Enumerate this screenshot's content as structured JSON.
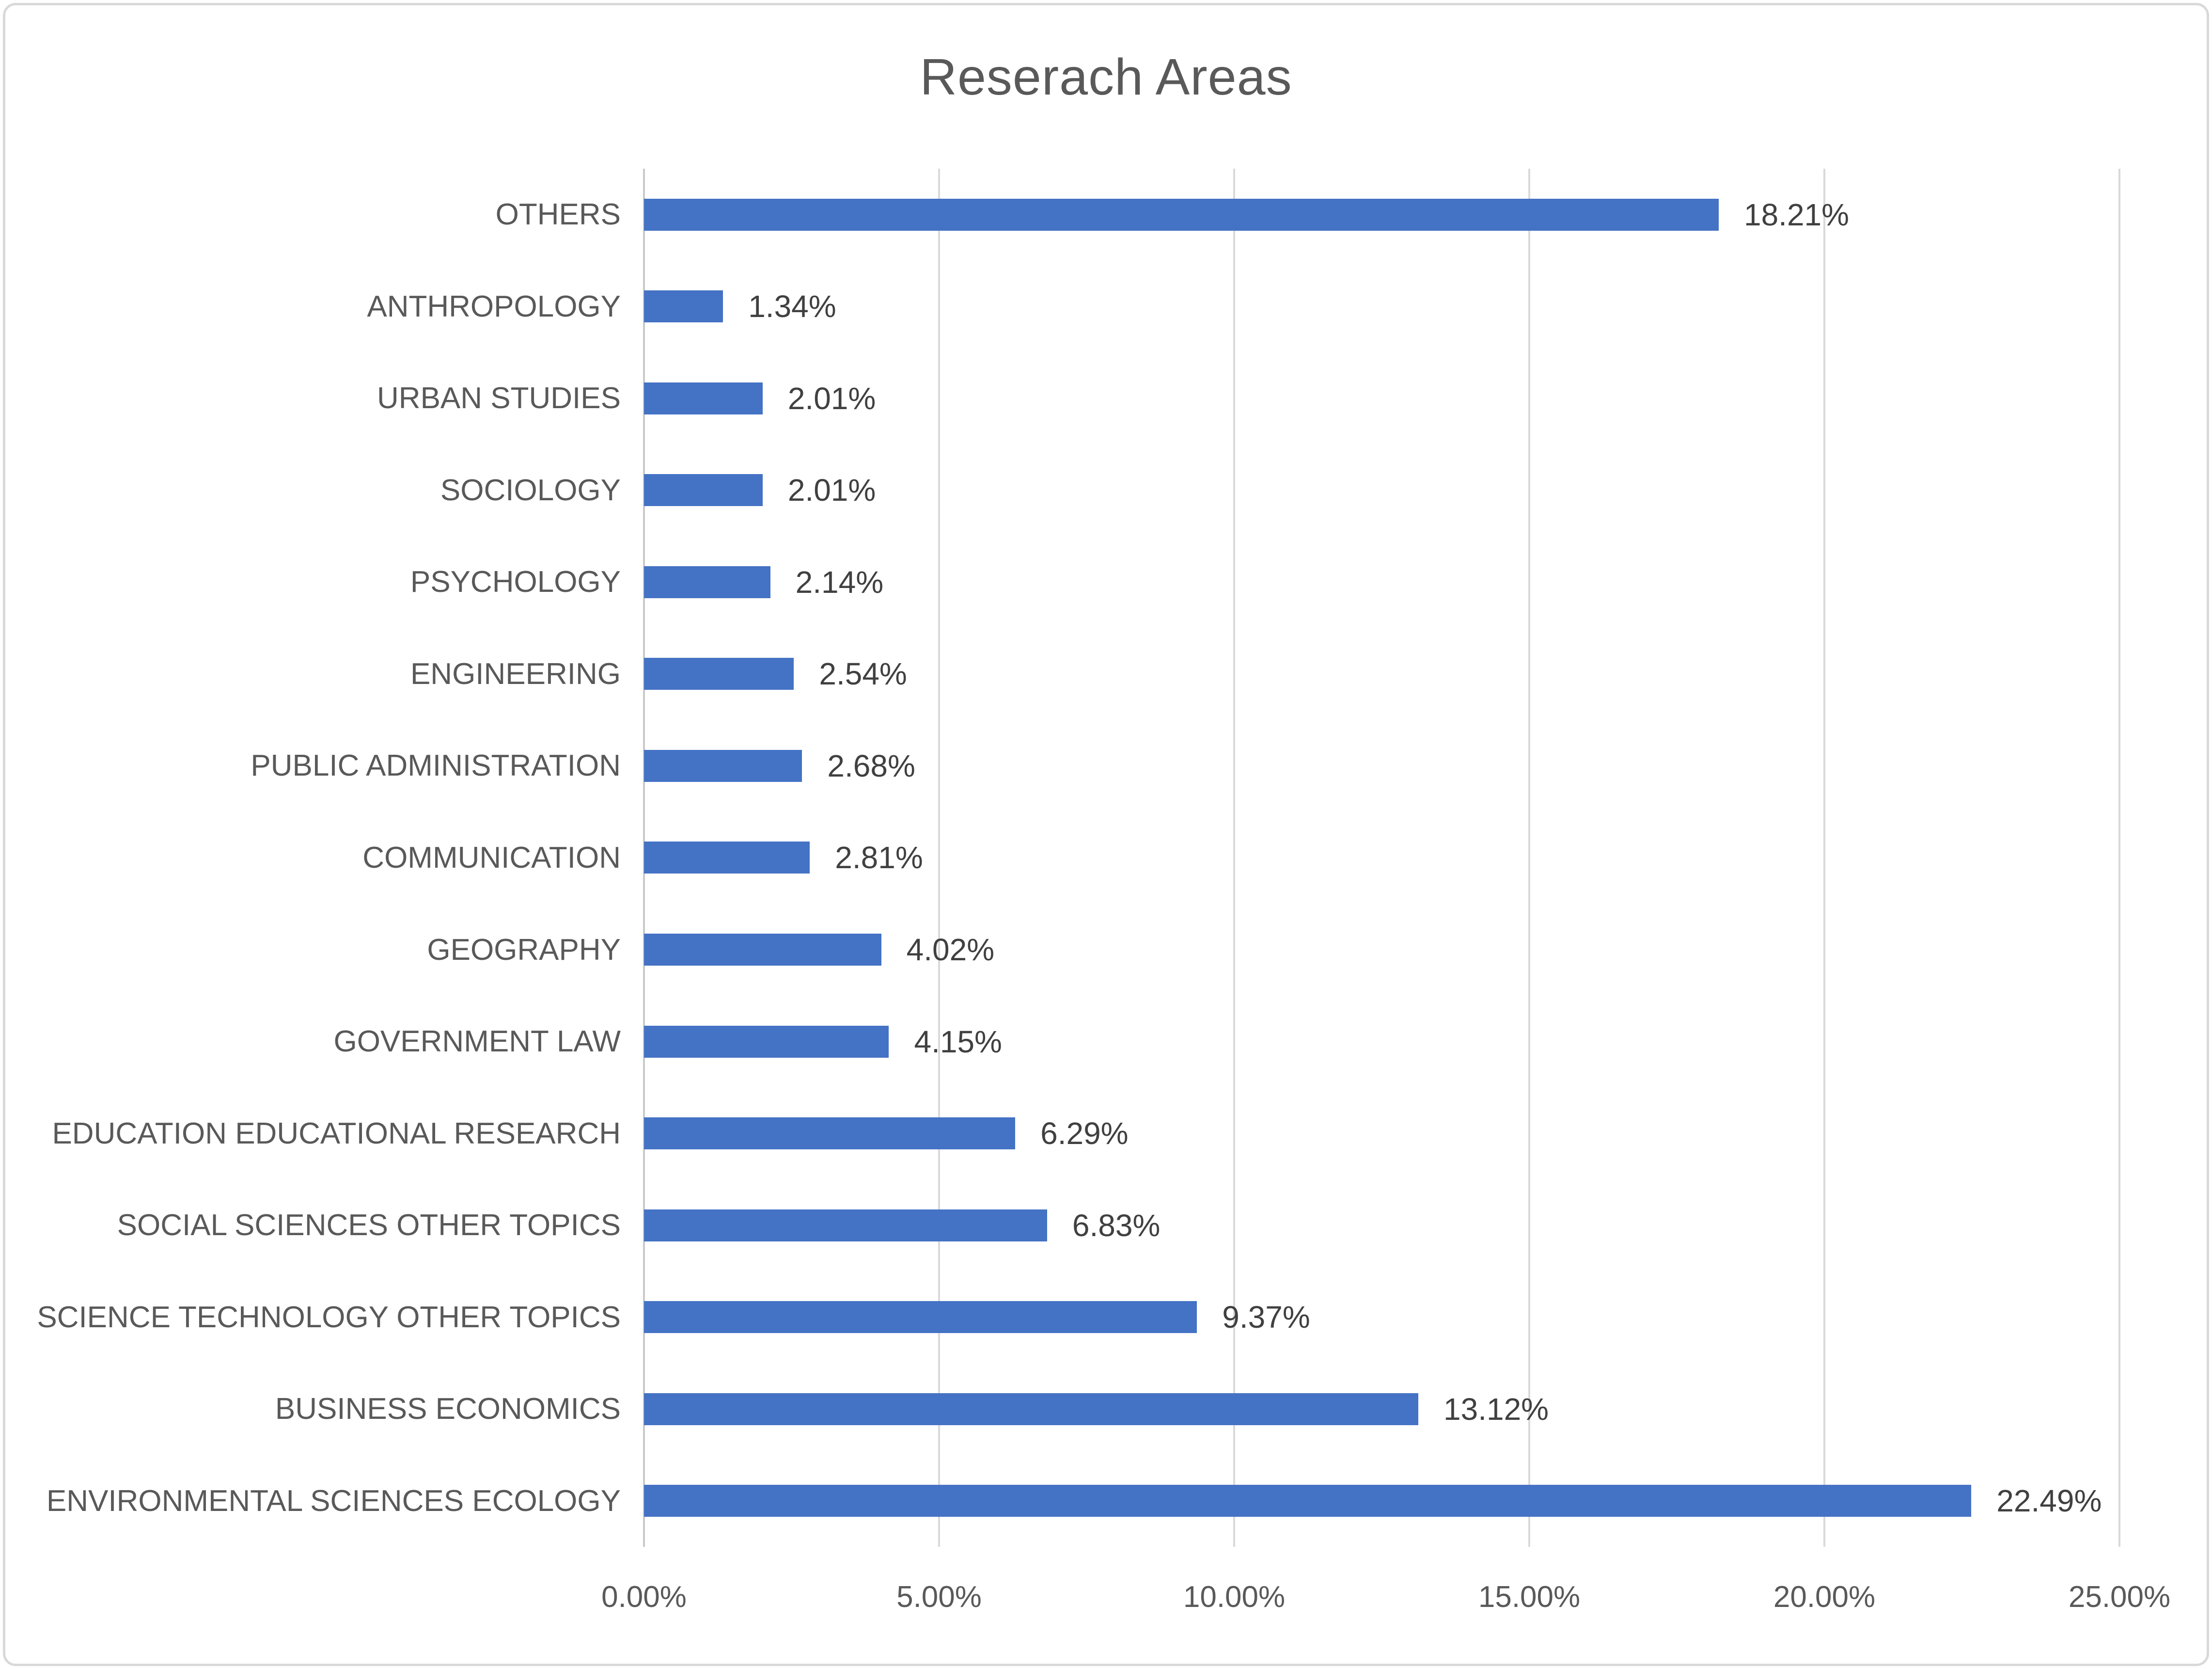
{
  "chart_data": {
    "type": "bar",
    "orientation": "horizontal",
    "title": "Reserach Areas",
    "categories": [
      "OTHERS",
      "ANTHROPOLOGY",
      "URBAN STUDIES",
      "SOCIOLOGY",
      "PSYCHOLOGY",
      "ENGINEERING",
      "PUBLIC ADMINISTRATION",
      "COMMUNICATION",
      "GEOGRAPHY",
      "GOVERNMENT LAW",
      "EDUCATION EDUCATIONAL RESEARCH",
      "SOCIAL SCIENCES OTHER TOPICS",
      "SCIENCE TECHNOLOGY OTHER TOPICS",
      "BUSINESS ECONOMICS",
      "ENVIRONMENTAL SCIENCES ECOLOGY"
    ],
    "values": [
      18.21,
      1.34,
      2.01,
      2.01,
      2.14,
      2.54,
      2.68,
      2.81,
      4.02,
      4.15,
      6.29,
      6.83,
      9.37,
      13.12,
      22.49
    ],
    "data_labels": [
      "18.21%",
      "1.34%",
      "2.01%",
      "2.01%",
      "2.14%",
      "2.54%",
      "2.68%",
      "2.81%",
      "4.02%",
      "4.15%",
      "6.29%",
      "6.83%",
      "9.37%",
      "13.12%",
      "22.49%"
    ],
    "x_ticks": [
      "0.00%",
      "5.00%",
      "10.00%",
      "15.00%",
      "20.00%",
      "25.00%"
    ],
    "xlim": [
      0,
      25
    ],
    "grid": true,
    "legend": false,
    "colors": {
      "bar": "#4472C4",
      "title": "#595959",
      "category_label": "#595959",
      "value_label": "#404040",
      "gridline": "#D9D9D9",
      "axis_line": "#C9C9C9"
    }
  }
}
